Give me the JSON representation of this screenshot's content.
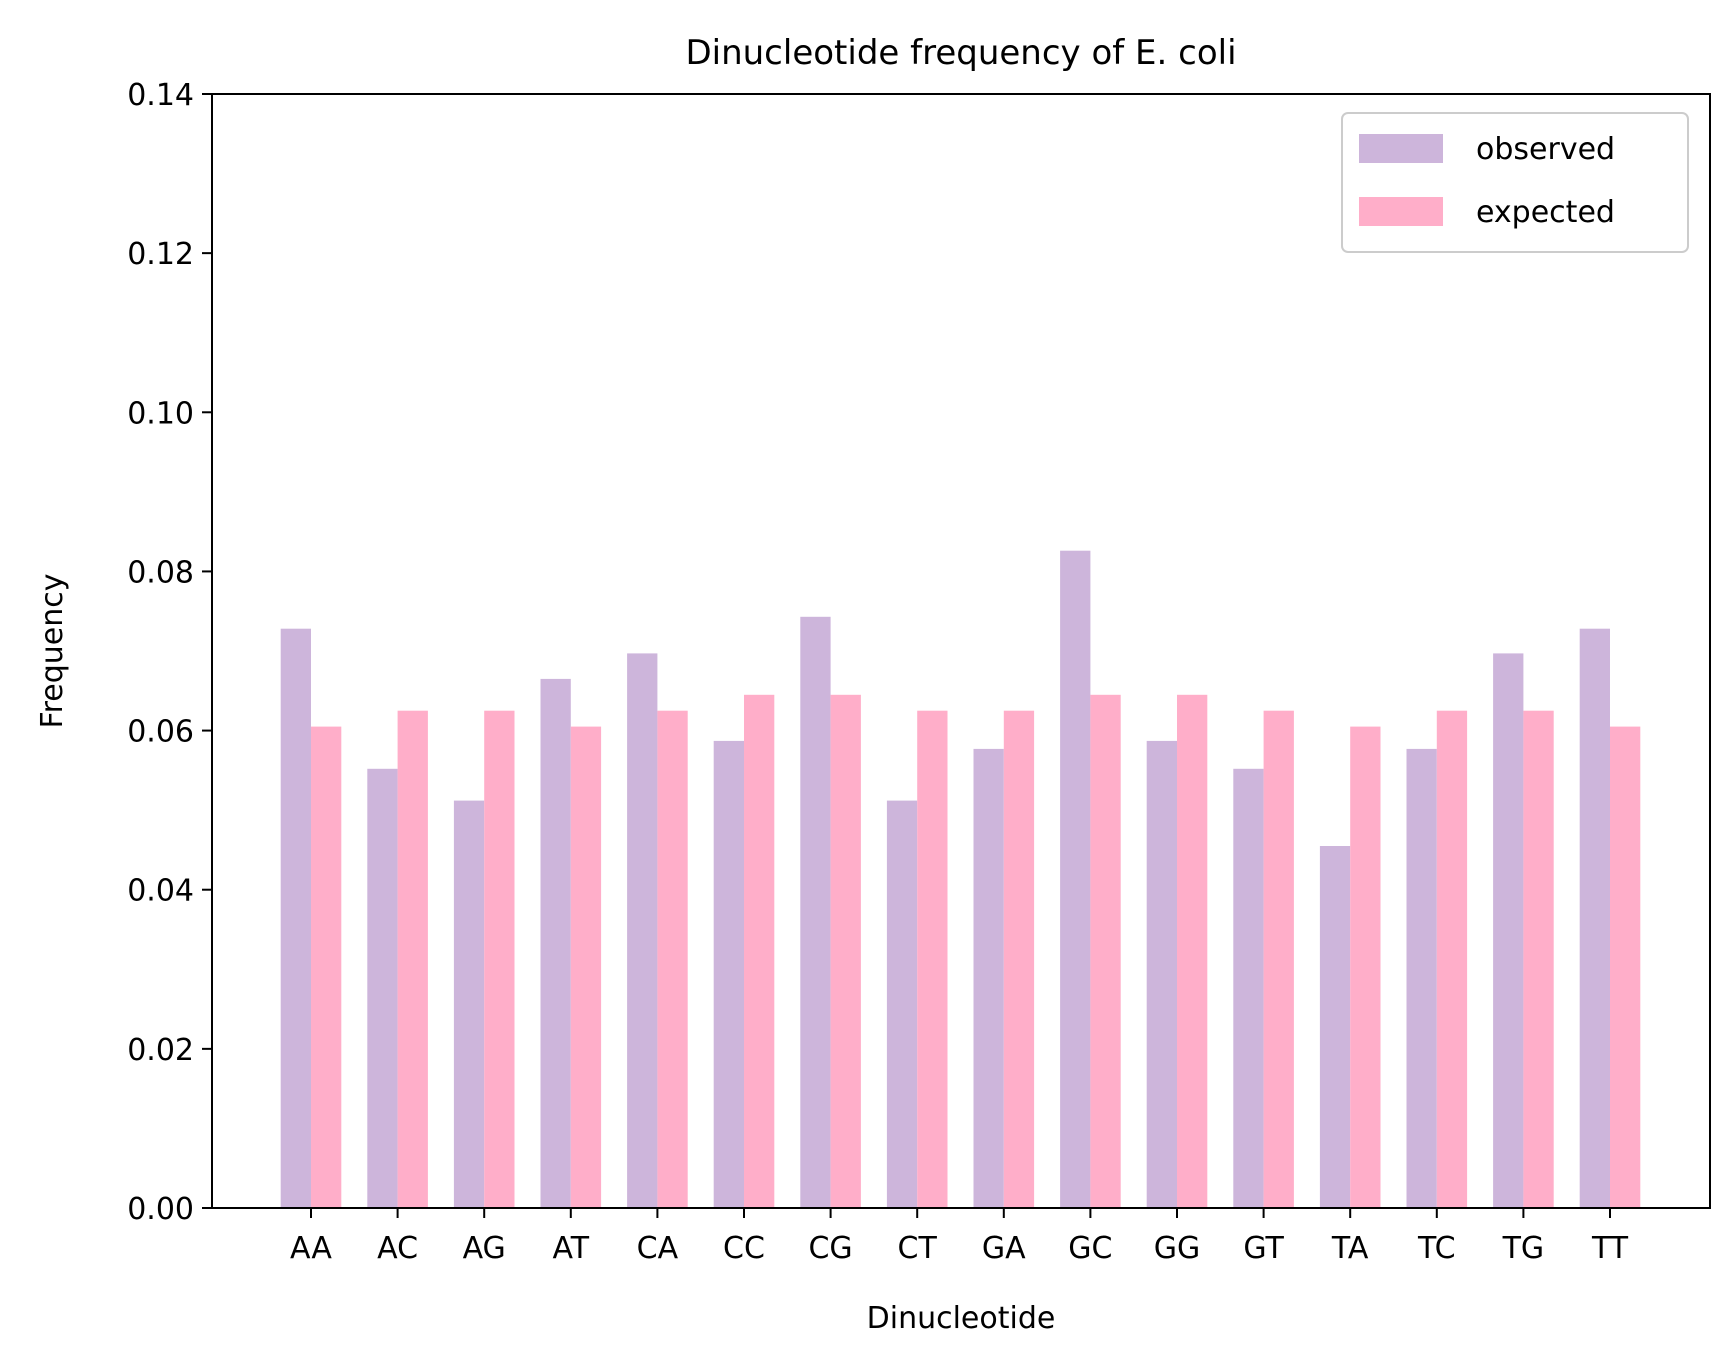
{
  "chart_data": {
    "type": "bar",
    "title": "Dinucleotide frequency of E. coli",
    "xlabel": "Dinucleotide",
    "ylabel": "Frequency",
    "ylim": [
      0,
      0.14
    ],
    "yticks": [
      "0.00",
      "0.02",
      "0.04",
      "0.06",
      "0.08",
      "0.10",
      "0.12",
      "0.14"
    ],
    "categories": [
      "AA",
      "AC",
      "AG",
      "AT",
      "CA",
      "CC",
      "CG",
      "CT",
      "GA",
      "GC",
      "GG",
      "GT",
      "TA",
      "TC",
      "TG",
      "TT"
    ],
    "series": [
      {
        "name": "observed",
        "color": "#cdb5db",
        "values": [
          0.0728,
          0.0552,
          0.0512,
          0.0665,
          0.0697,
          0.0587,
          0.0743,
          0.0512,
          0.0577,
          0.0826,
          0.0587,
          0.0552,
          0.0455,
          0.0577,
          0.0697,
          0.0728
        ]
      },
      {
        "name": "expected",
        "color": "#ffaec9",
        "values": [
          0.0605,
          0.0625,
          0.0625,
          0.0605,
          0.0625,
          0.0645,
          0.0645,
          0.0625,
          0.0625,
          0.0645,
          0.0645,
          0.0625,
          0.0605,
          0.0625,
          0.0625,
          0.0605
        ]
      }
    ],
    "legend_position": "top-right",
    "grid": false
  }
}
